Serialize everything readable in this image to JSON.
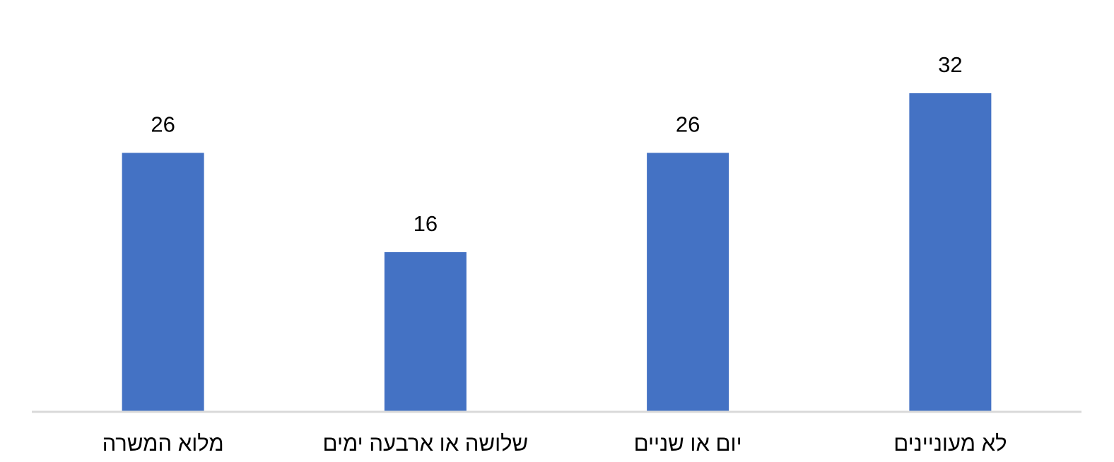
{
  "chart_data": {
    "type": "bar",
    "categories": [
      "מלוא המשרה",
      "שלושה או ארבעה ימים",
      "יום או שניים",
      "לא מעוניינים"
    ],
    "values": [
      26,
      16,
      26,
      32
    ],
    "color": "#4472c4"
  }
}
